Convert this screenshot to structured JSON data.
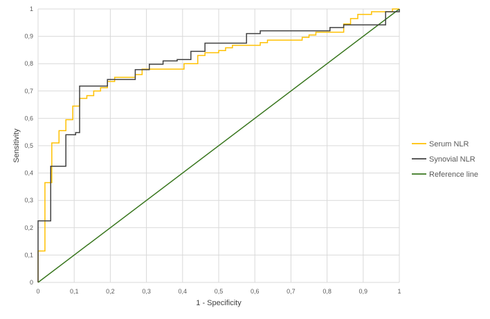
{
  "chart_data": {
    "type": "line",
    "xlabel": "1 - Specificity",
    "ylabel": "Sensitivity",
    "xlim": [
      0,
      1
    ],
    "ylim": [
      0,
      1
    ],
    "x_ticks": [
      "0",
      "0,1",
      "0,2",
      "0,3",
      "0,4",
      "0,5",
      "0,6",
      "0,7",
      "0,8",
      "0,9",
      "1"
    ],
    "y_ticks": [
      "0",
      "0,1",
      "0,2",
      "0,3",
      "0,4",
      "0,5",
      "0,6",
      "0,7",
      "0,8",
      "0,9",
      "1"
    ],
    "grid": true,
    "legend_position": "right",
    "series": [
      {
        "name": "Serum NLR",
        "color": "#FFC000",
        "step": true,
        "points": [
          [
            0,
            0
          ],
          [
            0,
            0.115
          ],
          [
            0.019,
            0.115
          ],
          [
            0.019,
            0.365
          ],
          [
            0.038,
            0.365
          ],
          [
            0.038,
            0.51
          ],
          [
            0.058,
            0.51
          ],
          [
            0.058,
            0.555
          ],
          [
            0.077,
            0.555
          ],
          [
            0.077,
            0.595
          ],
          [
            0.096,
            0.595
          ],
          [
            0.096,
            0.645
          ],
          [
            0.115,
            0.645
          ],
          [
            0.115,
            0.673
          ],
          [
            0.135,
            0.673
          ],
          [
            0.135,
            0.683
          ],
          [
            0.154,
            0.683
          ],
          [
            0.154,
            0.7
          ],
          [
            0.173,
            0.7
          ],
          [
            0.173,
            0.712
          ],
          [
            0.192,
            0.712
          ],
          [
            0.192,
            0.735
          ],
          [
            0.212,
            0.735
          ],
          [
            0.212,
            0.75
          ],
          [
            0.269,
            0.75
          ],
          [
            0.269,
            0.76
          ],
          [
            0.288,
            0.76
          ],
          [
            0.288,
            0.78
          ],
          [
            0.404,
            0.78
          ],
          [
            0.404,
            0.8
          ],
          [
            0.442,
            0.8
          ],
          [
            0.442,
            0.83
          ],
          [
            0.462,
            0.83
          ],
          [
            0.462,
            0.84
          ],
          [
            0.5,
            0.84
          ],
          [
            0.5,
            0.848
          ],
          [
            0.519,
            0.848
          ],
          [
            0.519,
            0.858
          ],
          [
            0.538,
            0.858
          ],
          [
            0.538,
            0.867
          ],
          [
            0.615,
            0.867
          ],
          [
            0.615,
            0.877
          ],
          [
            0.635,
            0.877
          ],
          [
            0.635,
            0.886
          ],
          [
            0.731,
            0.886
          ],
          [
            0.731,
            0.896
          ],
          [
            0.75,
            0.896
          ],
          [
            0.75,
            0.905
          ],
          [
            0.769,
            0.905
          ],
          [
            0.769,
            0.915
          ],
          [
            0.846,
            0.915
          ],
          [
            0.846,
            0.945
          ],
          [
            0.865,
            0.945
          ],
          [
            0.865,
            0.965
          ],
          [
            0.885,
            0.965
          ],
          [
            0.885,
            0.98
          ],
          [
            0.923,
            0.98
          ],
          [
            0.923,
            0.99
          ],
          [
            0.981,
            0.99
          ],
          [
            0.981,
            1.0
          ],
          [
            1.0,
            1.0
          ]
        ]
      },
      {
        "name": "Synovial NLR",
        "color": "#404040",
        "step": true,
        "points": [
          [
            0,
            0
          ],
          [
            0,
            0.225
          ],
          [
            0.035,
            0.225
          ],
          [
            0.035,
            0.425
          ],
          [
            0.077,
            0.425
          ],
          [
            0.077,
            0.54
          ],
          [
            0.104,
            0.54
          ],
          [
            0.104,
            0.548
          ],
          [
            0.115,
            0.548
          ],
          [
            0.115,
            0.718
          ],
          [
            0.192,
            0.718
          ],
          [
            0.192,
            0.742
          ],
          [
            0.269,
            0.742
          ],
          [
            0.269,
            0.778
          ],
          [
            0.308,
            0.778
          ],
          [
            0.308,
            0.798
          ],
          [
            0.346,
            0.798
          ],
          [
            0.346,
            0.81
          ],
          [
            0.385,
            0.81
          ],
          [
            0.385,
            0.815
          ],
          [
            0.423,
            0.815
          ],
          [
            0.423,
            0.845
          ],
          [
            0.462,
            0.845
          ],
          [
            0.462,
            0.875
          ],
          [
            0.577,
            0.875
          ],
          [
            0.577,
            0.91
          ],
          [
            0.615,
            0.91
          ],
          [
            0.615,
            0.92
          ],
          [
            0.808,
            0.92
          ],
          [
            0.808,
            0.932
          ],
          [
            0.846,
            0.932
          ],
          [
            0.846,
            0.942
          ],
          [
            0.962,
            0.942
          ],
          [
            0.962,
            0.99
          ],
          [
            1.0,
            0.99
          ],
          [
            1.0,
            1.0
          ]
        ]
      },
      {
        "name": "Reference line",
        "color": "#38761D",
        "step": false,
        "points": [
          [
            0,
            0
          ],
          [
            1,
            1
          ]
        ]
      }
    ]
  }
}
